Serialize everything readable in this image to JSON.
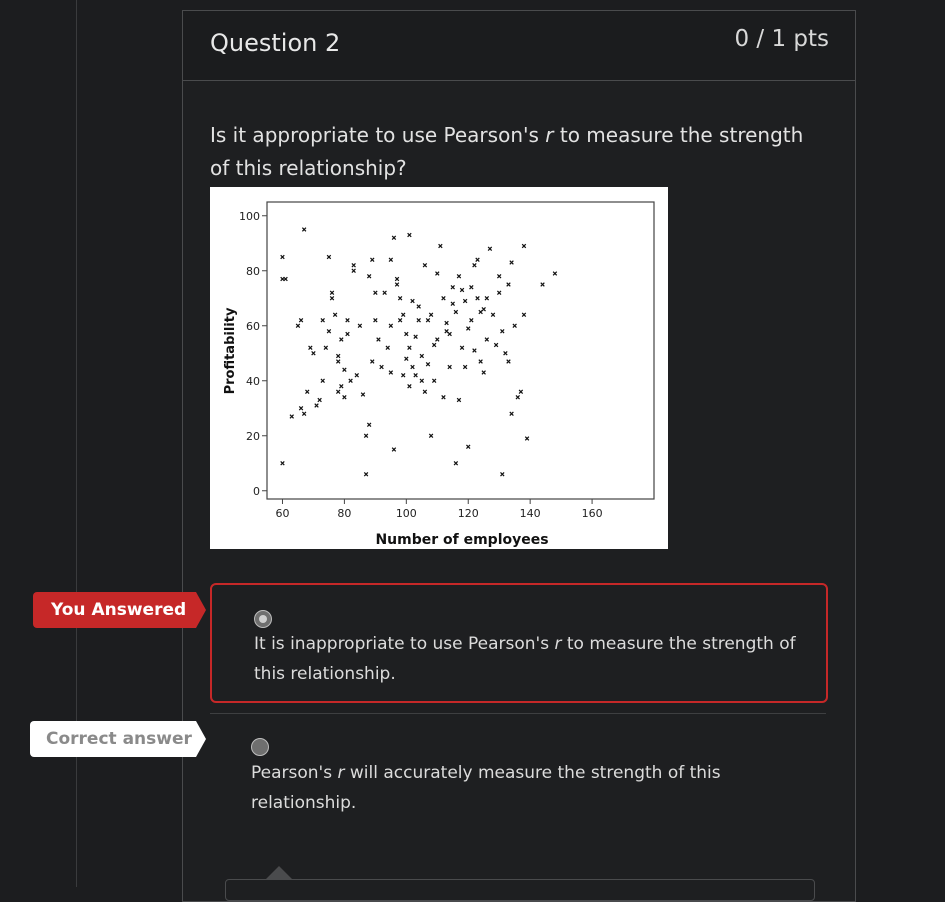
{
  "question": {
    "title": "Question 2",
    "points": "0 / 1 pts",
    "text_before_r": "Is it appropriate to use Pearson's ",
    "r": "r",
    "text_after_r": " to measure the strength of this relationship?"
  },
  "answers": [
    {
      "tag": "You Answered",
      "text_before_r": "It is inappropriate to use Pearson's ",
      "r": "r",
      "text_after_r": " to measure the strength of this relationship.",
      "selected": true
    },
    {
      "tag": "Correct answer",
      "text_before_r": "Pearson's ",
      "r": "r",
      "text_after_r": " will accurately measure the strength of this relationship.",
      "selected": false
    }
  ],
  "colors": {
    "you_answered": "#c62828",
    "background": "#1c1d1f",
    "card_border": "#4a4b4d"
  },
  "chart_data": {
    "type": "scatter",
    "xlabel": "Number of employees",
    "ylabel": "Profitability",
    "xlim": [
      55,
      180
    ],
    "ylim": [
      -3,
      105
    ],
    "xticks": [
      60,
      80,
      100,
      120,
      140,
      160
    ],
    "yticks": [
      0,
      20,
      40,
      60,
      80,
      100
    ],
    "marker": "x",
    "points": [
      [
        60,
        85
      ],
      [
        60,
        10
      ],
      [
        60,
        77
      ],
      [
        61,
        77
      ],
      [
        63,
        27
      ],
      [
        65,
        60
      ],
      [
        66,
        30
      ],
      [
        66,
        62
      ],
      [
        67,
        95
      ],
      [
        67,
        28
      ],
      [
        68,
        36
      ],
      [
        69,
        52
      ],
      [
        70,
        50
      ],
      [
        71,
        31
      ],
      [
        72,
        33
      ],
      [
        73,
        40
      ],
      [
        73,
        62
      ],
      [
        74,
        52
      ],
      [
        75,
        58
      ],
      [
        75,
        85
      ],
      [
        76,
        70
      ],
      [
        76,
        72
      ],
      [
        77,
        64
      ],
      [
        78,
        47
      ],
      [
        78,
        49
      ],
      [
        78,
        36
      ],
      [
        79,
        55
      ],
      [
        79,
        38
      ],
      [
        80,
        34
      ],
      [
        80,
        44
      ],
      [
        81,
        62
      ],
      [
        81,
        57
      ],
      [
        82,
        40
      ],
      [
        83,
        82
      ],
      [
        83,
        80
      ],
      [
        84,
        42
      ],
      [
        85,
        60
      ],
      [
        86,
        35
      ],
      [
        87,
        6
      ],
      [
        87,
        20
      ],
      [
        88,
        24
      ],
      [
        88,
        78
      ],
      [
        89,
        84
      ],
      [
        89,
        47
      ],
      [
        90,
        72
      ],
      [
        90,
        62
      ],
      [
        91,
        55
      ],
      [
        92,
        45
      ],
      [
        93,
        72
      ],
      [
        94,
        52
      ],
      [
        95,
        84
      ],
      [
        95,
        43
      ],
      [
        95,
        60
      ],
      [
        96,
        15
      ],
      [
        96,
        92
      ],
      [
        97,
        75
      ],
      [
        97,
        77
      ],
      [
        98,
        70
      ],
      [
        98,
        62
      ],
      [
        99,
        64
      ],
      [
        99,
        42
      ],
      [
        100,
        57
      ],
      [
        100,
        48
      ],
      [
        101,
        93
      ],
      [
        101,
        38
      ],
      [
        101,
        52
      ],
      [
        102,
        69
      ],
      [
        102,
        45
      ],
      [
        103,
        56
      ],
      [
        103,
        42
      ],
      [
        104,
        67
      ],
      [
        104,
        62
      ],
      [
        105,
        49
      ],
      [
        105,
        40
      ],
      [
        106,
        82
      ],
      [
        106,
        36
      ],
      [
        107,
        62
      ],
      [
        107,
        46
      ],
      [
        108,
        64
      ],
      [
        108,
        20
      ],
      [
        109,
        40
      ],
      [
        109,
        53
      ],
      [
        110,
        55
      ],
      [
        110,
        79
      ],
      [
        111,
        89
      ],
      [
        112,
        34
      ],
      [
        112,
        70
      ],
      [
        113,
        61
      ],
      [
        113,
        58
      ],
      [
        114,
        57
      ],
      [
        114,
        45
      ],
      [
        115,
        74
      ],
      [
        115,
        68
      ],
      [
        116,
        65
      ],
      [
        116,
        10
      ],
      [
        117,
        78
      ],
      [
        117,
        33
      ],
      [
        118,
        73
      ],
      [
        118,
        52
      ],
      [
        119,
        69
      ],
      [
        119,
        45
      ],
      [
        120,
        59
      ],
      [
        120,
        16
      ],
      [
        121,
        74
      ],
      [
        121,
        62
      ],
      [
        122,
        82
      ],
      [
        122,
        51
      ],
      [
        123,
        84
      ],
      [
        123,
        70
      ],
      [
        124,
        65
      ],
      [
        124,
        47
      ],
      [
        125,
        66
      ],
      [
        125,
        43
      ],
      [
        126,
        55
      ],
      [
        126,
        70
      ],
      [
        127,
        88
      ],
      [
        128,
        64
      ],
      [
        129,
        53
      ],
      [
        130,
        78
      ],
      [
        130,
        72
      ],
      [
        131,
        58
      ],
      [
        131,
        6
      ],
      [
        132,
        50
      ],
      [
        133,
        75
      ],
      [
        133,
        47
      ],
      [
        134,
        28
      ],
      [
        134,
        83
      ],
      [
        135,
        60
      ],
      [
        136,
        34
      ],
      [
        137,
        36
      ],
      [
        138,
        64
      ],
      [
        138,
        89
      ],
      [
        139,
        19
      ],
      [
        144,
        75
      ],
      [
        148,
        79
      ]
    ]
  }
}
